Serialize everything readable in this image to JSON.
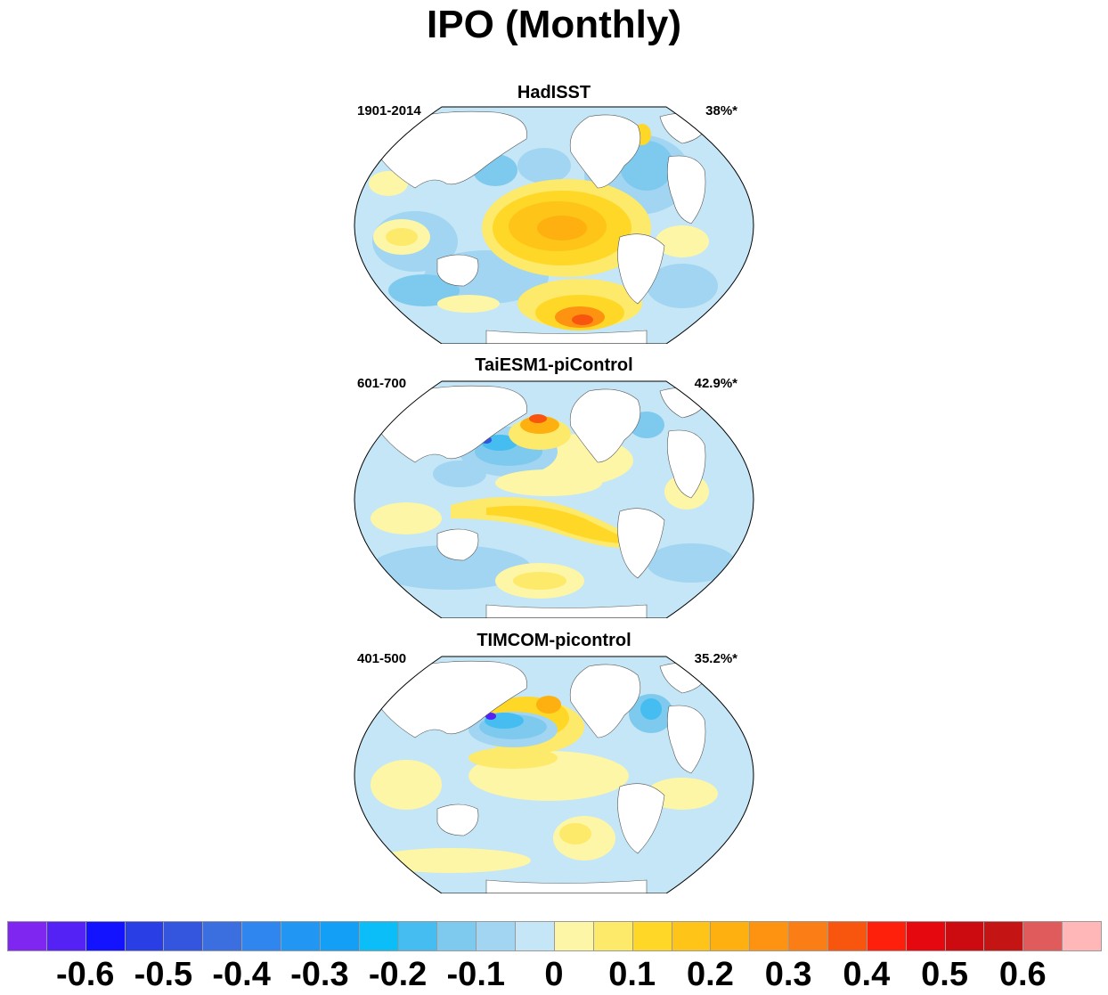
{
  "title": "IPO (Monthly)",
  "panels": [
    {
      "title": "HadISST",
      "period": "1901-2014",
      "variance": "38%*"
    },
    {
      "title": "TaiESM1-piControl",
      "period": "601-700",
      "variance": "42.9%*"
    },
    {
      "title": "TIMCOM-picontrol",
      "period": "401-500",
      "variance": "35.2%*"
    }
  ],
  "colorbar": {
    "colors": [
      "#7f26f0",
      "#5522f5",
      "#1313ff",
      "#2a3ee6",
      "#3455de",
      "#3b6fe0",
      "#2f86ef",
      "#2196f3",
      "#149ff7",
      "#0cbef8",
      "#45bdf0",
      "#7ecaee",
      "#a1d5f1",
      "#c4e6f6",
      "#fdf6a6",
      "#fde96a",
      "#fed727",
      "#fec417",
      "#fdb010",
      "#fd9311",
      "#fb7d16",
      "#f8560e",
      "#ff200c",
      "#e5080e",
      "#cc0b10",
      "#c51414",
      "#e05c5c",
      "#ffb7b7"
    ],
    "tick_labels": [
      "-0.6",
      "-0.5",
      "-0.4",
      "-0.3",
      "-0.2",
      "-0.1",
      "0",
      "0.1",
      "0.2",
      "0.3",
      "0.4",
      "0.5",
      "0.6"
    ]
  }
}
